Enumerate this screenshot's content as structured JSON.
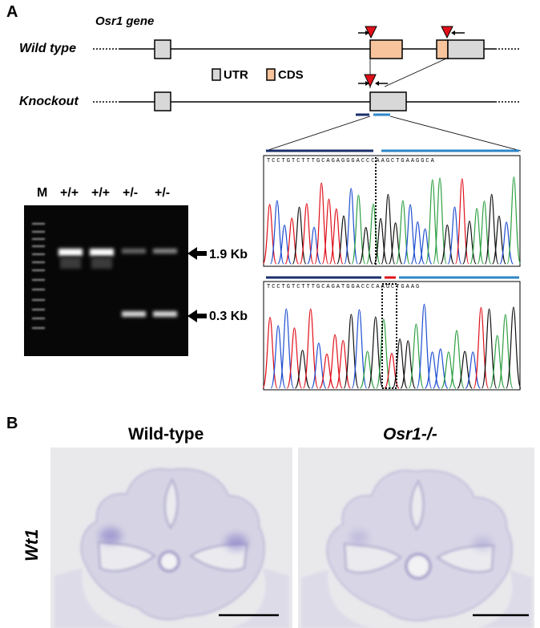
{
  "panel_a": {
    "letter": "A",
    "gene_name": "Osr1 gene",
    "rows": {
      "wild_type": "Wild type",
      "knockout": "Knockout"
    },
    "legend": {
      "utr": "UTR",
      "cds": "CDS"
    },
    "gel": {
      "marker": "M",
      "lanes": [
        "+/+",
        "+/+",
        "+/-",
        "+/-"
      ],
      "bands": {
        "large": "1.9 Kb",
        "small": "0.3 Kb"
      }
    },
    "chromatograms": {
      "top_seq": "TCCTGTCTTTGCAGAGGGACCCAAGCTGAAGGCA",
      "bottom_seq": "TCCTGTCTTTGCAGATGGACCCAAGCTGAAG"
    }
  },
  "panel_b": {
    "letter": "B",
    "columns": [
      "Wild-type",
      "Osr1-/-"
    ],
    "row_label": "Wt1"
  },
  "colors": {
    "utr": "#d8d8d8",
    "cds": "#f8c49c",
    "arrowhead": "#e0101a",
    "dark_blue": "#1a2f6b",
    "light_blue": "#2e86c8",
    "red_bar": "#e0101a",
    "stain": "#6a5fb8"
  }
}
